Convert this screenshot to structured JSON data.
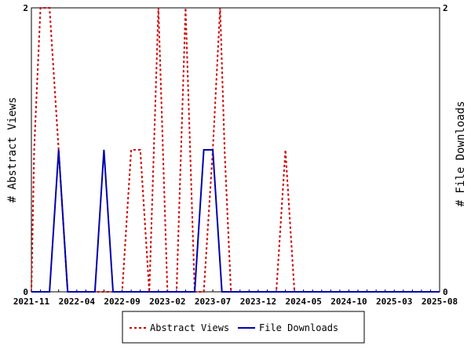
{
  "chart_data": {
    "type": "line",
    "ylabel_left": "# Abstract Views",
    "ylabel_right": "# File Downloads",
    "x_ticks": [
      "2021-11",
      "2022-04",
      "2022-09",
      "2023-02",
      "2023-07",
      "2023-12",
      "2024-05",
      "2024-10",
      "2025-03",
      "2025-08"
    ],
    "x_range": [
      "2021-11",
      "2025-08"
    ],
    "y_left_ticks": [
      "0",
      "2"
    ],
    "y_right_ticks": [
      "0",
      "2"
    ],
    "ylim_left": [
      0,
      2
    ],
    "ylim_right": [
      0,
      2
    ],
    "grid": false,
    "legend_position": "bottom",
    "series": [
      {
        "name": "Abstract Views",
        "color": "#cc0000",
        "style": "dashed",
        "axis": "left",
        "points": [
          [
            0.0,
            0
          ],
          [
            0.3,
            1
          ],
          [
            1.0,
            2
          ],
          [
            2.0,
            2
          ],
          [
            3.0,
            1
          ],
          [
            4.0,
            0
          ],
          [
            5.0,
            0
          ],
          [
            6.0,
            0
          ],
          [
            7.0,
            0
          ],
          [
            8.0,
            0
          ],
          [
            9.0,
            0
          ],
          [
            10.0,
            0
          ],
          [
            11.0,
            1
          ],
          [
            12.0,
            1
          ],
          [
            13.0,
            0
          ],
          [
            14.0,
            2
          ],
          [
            15.0,
            0
          ],
          [
            16.0,
            0
          ],
          [
            17.0,
            2
          ],
          [
            18.0,
            0
          ],
          [
            19.0,
            0
          ],
          [
            20.0,
            1
          ],
          [
            20.8,
            2
          ],
          [
            21.3,
            1
          ],
          [
            22.0,
            0
          ],
          [
            23.0,
            0
          ],
          [
            24.0,
            0
          ],
          [
            25.0,
            0
          ],
          [
            26.0,
            0
          ],
          [
            27.0,
            0
          ],
          [
            28.0,
            1
          ],
          [
            29.0,
            0
          ],
          [
            30.0,
            0
          ],
          [
            31.0,
            0
          ],
          [
            32.0,
            0
          ],
          [
            33.0,
            0
          ],
          [
            34.0,
            0
          ],
          [
            35.0,
            0
          ],
          [
            36.0,
            0
          ],
          [
            37.0,
            0
          ],
          [
            38.0,
            0
          ],
          [
            39.0,
            0
          ],
          [
            40.0,
            0
          ],
          [
            41.0,
            0
          ],
          [
            42.0,
            0
          ],
          [
            43.0,
            0
          ],
          [
            44.0,
            0
          ],
          [
            45.0,
            0
          ]
        ]
      },
      {
        "name": "File Downloads",
        "color": "#0000aa",
        "style": "solid",
        "axis": "right",
        "points": [
          [
            0,
            0
          ],
          [
            1,
            0
          ],
          [
            2,
            0
          ],
          [
            3,
            1
          ],
          [
            4,
            0
          ],
          [
            5,
            0
          ],
          [
            6,
            0
          ],
          [
            7,
            0
          ],
          [
            8,
            1
          ],
          [
            9,
            0
          ],
          [
            10,
            0
          ],
          [
            11,
            0
          ],
          [
            12,
            0
          ],
          [
            13,
            0
          ],
          [
            14,
            0
          ],
          [
            15,
            0
          ],
          [
            16,
            0
          ],
          [
            17,
            0
          ],
          [
            18,
            0
          ],
          [
            19,
            1
          ],
          [
            20,
            1
          ],
          [
            21,
            0
          ],
          [
            22,
            0
          ],
          [
            23,
            0
          ],
          [
            24,
            0
          ],
          [
            25,
            0
          ],
          [
            26,
            0
          ],
          [
            27,
            0
          ],
          [
            28,
            0
          ],
          [
            29,
            0
          ],
          [
            30,
            0
          ],
          [
            31,
            0
          ],
          [
            32,
            0
          ],
          [
            33,
            0
          ],
          [
            34,
            0
          ],
          [
            35,
            0
          ],
          [
            36,
            0
          ],
          [
            37,
            0
          ],
          [
            38,
            0
          ],
          [
            39,
            0
          ],
          [
            40,
            0
          ],
          [
            41,
            0
          ],
          [
            42,
            0
          ],
          [
            43,
            0
          ],
          [
            44,
            0
          ],
          [
            45,
            0
          ]
        ]
      }
    ]
  },
  "legend": {
    "items": [
      "Abstract Views",
      "File Downloads"
    ]
  }
}
